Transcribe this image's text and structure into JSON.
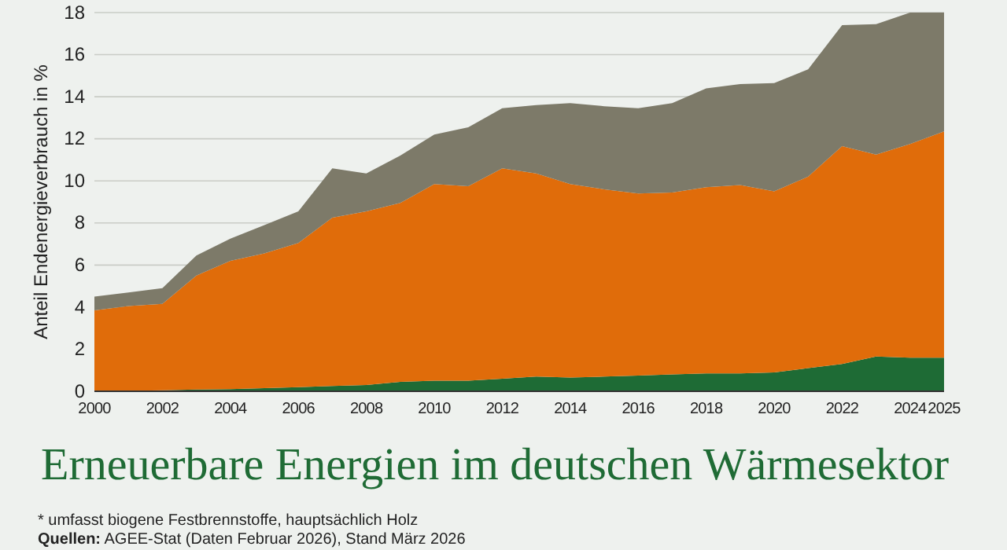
{
  "chart_data": {
    "type": "area",
    "stacked": true,
    "title": "Erneuerbare Energien im deutschen Wärmesektor",
    "ylabel": "Anteil Endenergieverbrauch in %",
    "annotations": [
      "* umfasst biogene Festbrennstoffe, hauptsächlich Holz",
      "Quellen: AGEE-Stat (Daten Februar 2026), Stand März 2026"
    ],
    "x": [
      2000,
      2001,
      2002,
      2003,
      2004,
      2005,
      2006,
      2007,
      2008,
      2009,
      2010,
      2011,
      2012,
      2013,
      2014,
      2015,
      2016,
      2017,
      2018,
      2019,
      2020,
      2021,
      2022,
      2023,
      2024,
      2025
    ],
    "series": [
      {
        "color": "#1e6b35",
        "values": [
          0,
          0.02,
          0.05,
          0.08,
          0.1,
          0.15,
          0.2,
          0.25,
          0.3,
          0.45,
          0.5,
          0.5,
          0.6,
          0.7,
          0.65,
          0.7,
          0.75,
          0.8,
          0.85,
          0.85,
          0.9,
          1.1,
          1.3,
          1.65,
          1.6,
          1.6
        ]
      },
      {
        "color": "#e06c0a",
        "values": [
          3.85,
          4.03,
          4.1,
          5.42,
          6.1,
          6.4,
          6.85,
          8.0,
          8.25,
          8.5,
          9.35,
          9.25,
          10.0,
          9.65,
          9.2,
          8.9,
          8.65,
          8.65,
          8.85,
          8.95,
          8.6,
          9.1,
          10.35,
          9.6,
          10.15,
          10.75
        ]
      },
      {
        "color": "#7d7a69",
        "values": [
          0.65,
          0.65,
          0.75,
          0.95,
          1.05,
          1.35,
          1.5,
          2.35,
          1.8,
          2.25,
          2.35,
          2.8,
          2.85,
          3.25,
          3.85,
          3.95,
          4.05,
          4.25,
          4.7,
          4.8,
          5.15,
          5.1,
          5.75,
          6.2,
          6.25,
          5.65
        ]
      }
    ],
    "xlim": [
      2000,
      2025
    ],
    "xticks": [
      2000,
      2002,
      2004,
      2006,
      2008,
      2010,
      2012,
      2014,
      2016,
      2018,
      2020,
      2022,
      2024,
      2025
    ],
    "ylim": [
      0,
      18
    ],
    "yticks": [
      0,
      2,
      4,
      6,
      8,
      10,
      12,
      14,
      16,
      18
    ],
    "grid": "y"
  }
}
